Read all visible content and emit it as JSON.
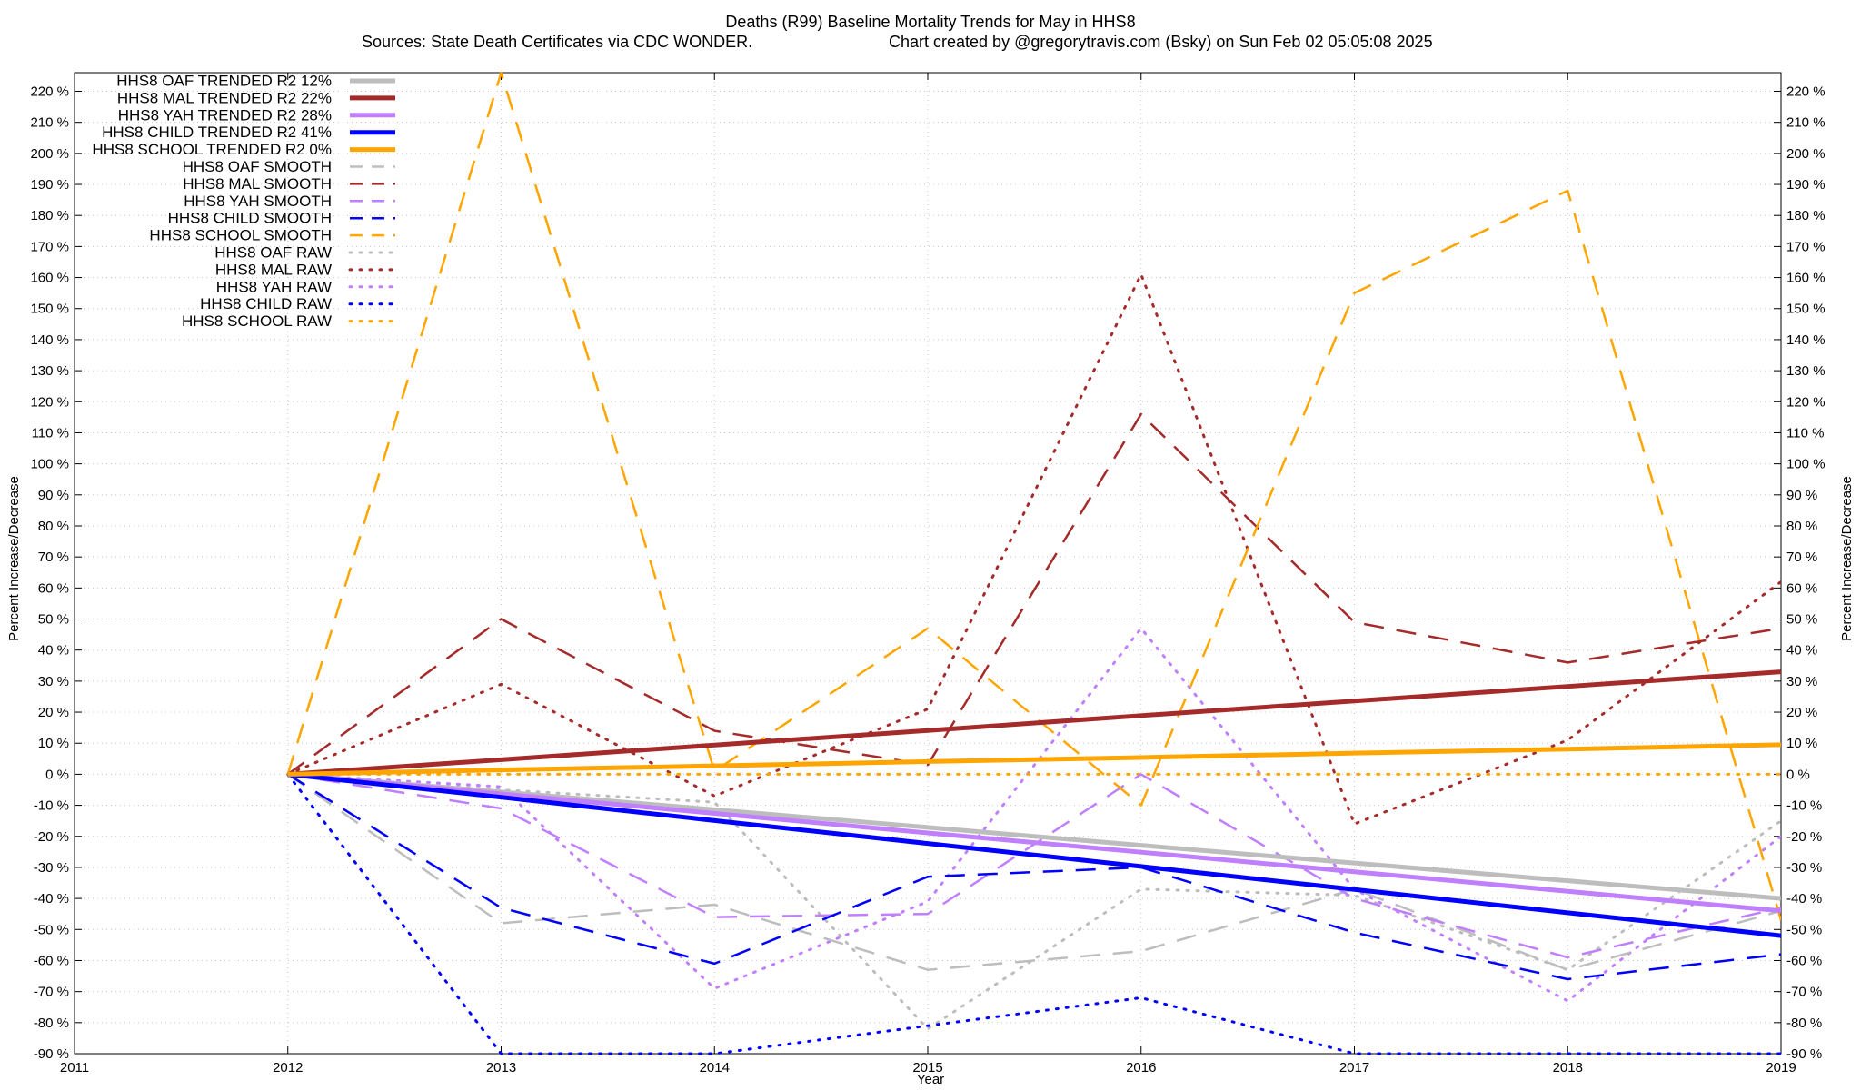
{
  "chart_data": {
    "type": "line",
    "title": "Deaths (R99)  Baseline Mortality Trends for May in HHS8",
    "subtitle_left": "Sources: State Death Certificates via CDC WONDER.",
    "subtitle_right": "Chart created by @gregorytravis.com (Bsky) on Sun Feb 02 05:05:08 2025",
    "xlabel": "Year",
    "ylabel_left": "Percent Increase/Decrease",
    "ylabel_right": "Percent Increase/Decrease",
    "xlim": [
      2011,
      2019
    ],
    "ylim": [
      -90,
      226
    ],
    "x_ticks": [
      "2011",
      "2012",
      "2013",
      "2014",
      "2015",
      "2016",
      "2017",
      "2018",
      "2019"
    ],
    "y_ticks": [
      "220 %",
      "210 %",
      "200 %",
      "190 %",
      "180 %",
      "170 %",
      "160 %",
      "150 %",
      "140 %",
      "130 %",
      "120 %",
      "110 %",
      "100 %",
      "90 %",
      "80 %",
      "70 %",
      "60 %",
      "50 %",
      "40 %",
      "30 %",
      "20 %",
      "10 %",
      "0 %",
      "-10 %",
      "-20 %",
      "-30 %",
      "-40 %",
      "-50 %",
      "-60 %",
      "-70 %",
      "-80 %",
      "-90 %"
    ],
    "grid": true,
    "legend_position": "top-left",
    "x": [
      2012,
      2013,
      2014,
      2015,
      2016,
      2017,
      2018,
      2019
    ],
    "series": [
      {
        "name": "HHS8 OAF TRENDED R2  12%",
        "style": "solid",
        "color": "#bdbdbd",
        "values": [
          0,
          -5.7,
          -11.4,
          -17.1,
          -22.9,
          -28.6,
          -34.3,
          -40
        ]
      },
      {
        "name": "HHS8 MAL TRENDED R2  22%",
        "style": "solid",
        "color": "#a52a2a",
        "values": [
          0,
          4.7,
          9.4,
          14.1,
          18.9,
          23.6,
          28.3,
          33
        ]
      },
      {
        "name": "HHS8 YAH TRENDED R2  28%",
        "style": "solid",
        "color": "#bf7fff",
        "values": [
          0,
          -6.3,
          -12.6,
          -18.9,
          -25.1,
          -31.4,
          -37.7,
          -44
        ]
      },
      {
        "name": "HHS8 CHILD TRENDED R2  41%",
        "style": "solid",
        "color": "#0000ff",
        "values": [
          0,
          -7.4,
          -14.9,
          -22.3,
          -29.7,
          -37.1,
          -44.6,
          -52
        ]
      },
      {
        "name": "HHS8 SCHOOL TRENDED R2   0%",
        "style": "solid",
        "color": "#ffa500",
        "values": [
          0,
          1.4,
          2.7,
          4.1,
          5.4,
          6.8,
          8.1,
          9.5
        ]
      },
      {
        "name": "HHS8 OAF SMOOTH",
        "style": "dashed",
        "color": "#bdbdbd",
        "values": [
          0,
          -48,
          -42,
          -63,
          -57,
          -37,
          -63,
          -44
        ]
      },
      {
        "name": "HHS8 MAL SMOOTH",
        "style": "dashed",
        "color": "#a52a2a",
        "values": [
          0,
          50,
          14,
          3,
          116,
          49,
          36,
          47
        ]
      },
      {
        "name": "HHS8 YAH SMOOTH",
        "style": "dashed",
        "color": "#bf7fff",
        "values": [
          0,
          -11,
          -46,
          -45,
          0,
          -40,
          -59,
          -43
        ]
      },
      {
        "name": "HHS8 CHILD SMOOTH",
        "style": "dashed",
        "color": "#0000ff",
        "values": [
          0,
          -43,
          -61,
          -33,
          -30,
          -51,
          -66,
          -58
        ]
      },
      {
        "name": "HHS8 SCHOOL SMOOTH",
        "style": "dashed",
        "color": "#ffa500",
        "values": [
          0,
          226,
          1,
          47,
          -10,
          155,
          188,
          -47
        ]
      },
      {
        "name": "HHS8 OAF RAW",
        "style": "dotted",
        "color": "#bdbdbd",
        "values": [
          0,
          -5,
          -9,
          -82,
          -37,
          -39,
          -63,
          -15
        ]
      },
      {
        "name": "HHS8 MAL RAW",
        "style": "dotted",
        "color": "#a52a2a",
        "values": [
          0,
          29,
          -7,
          21,
          161,
          -16,
          11,
          62
        ]
      },
      {
        "name": "HHS8 YAH RAW",
        "style": "dotted",
        "color": "#bf7fff",
        "values": [
          0,
          -4,
          -69,
          -41,
          47,
          -37,
          -73,
          -20
        ]
      },
      {
        "name": "HHS8 CHILD RAW",
        "style": "dotted",
        "color": "#0000ff",
        "values": [
          0,
          -90,
          -90,
          -81,
          -72,
          -90,
          -90,
          -90
        ]
      },
      {
        "name": "HHS8 SCHOOL RAW",
        "style": "dotted",
        "color": "#ffa500",
        "values": [
          0,
          0,
          0,
          0,
          0,
          0,
          0,
          0
        ]
      }
    ]
  }
}
